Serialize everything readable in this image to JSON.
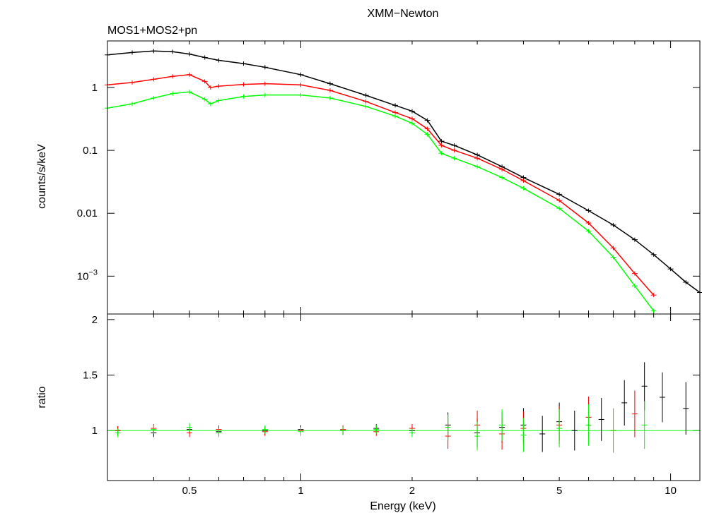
{
  "chart_data": [
    {
      "type": "line",
      "title": "XMM−Newton",
      "subtitle": "MOS1+MOS2+pn",
      "xlabel": "",
      "ylabel": "counts/s/keV",
      "xscale": "log",
      "yscale": "log",
      "xlim": [
        0.3,
        12
      ],
      "ylim": [
        0.00025,
        5.5
      ],
      "y_ticks": [
        {
          "value": 1,
          "label": "1"
        },
        {
          "value": 0.1,
          "label": "0.1"
        },
        {
          "value": 0.01,
          "label": "0.01"
        },
        {
          "value": 0.001,
          "label": "10−3"
        }
      ],
      "grid": false,
      "series": [
        {
          "color": "#000000",
          "points": [
            [
              0.3,
              3.3
            ],
            [
              0.35,
              3.6
            ],
            [
              0.4,
              3.8
            ],
            [
              0.45,
              3.7
            ],
            [
              0.5,
              3.4
            ],
            [
              0.55,
              3.0
            ],
            [
              0.6,
              2.7
            ],
            [
              0.7,
              2.4
            ],
            [
              0.8,
              2.1
            ],
            [
              1.0,
              1.6
            ],
            [
              1.2,
              1.15
            ],
            [
              1.5,
              0.75
            ],
            [
              1.8,
              0.52
            ],
            [
              2.0,
              0.42
            ],
            [
              2.2,
              0.3
            ],
            [
              2.4,
              0.14
            ],
            [
              2.6,
              0.12
            ],
            [
              3.0,
              0.085
            ],
            [
              3.5,
              0.055
            ],
            [
              4.0,
              0.037
            ],
            [
              5.0,
              0.02
            ],
            [
              6.0,
              0.011
            ],
            [
              7.0,
              0.0065
            ],
            [
              8.0,
              0.0038
            ],
            [
              9.0,
              0.0022
            ],
            [
              10.0,
              0.0013
            ],
            [
              11.0,
              0.0008
            ],
            [
              12.0,
              0.00055
            ]
          ]
        },
        {
          "color": "#ff0000",
          "points": [
            [
              0.3,
              1.1
            ],
            [
              0.35,
              1.2
            ],
            [
              0.4,
              1.35
            ],
            [
              0.45,
              1.5
            ],
            [
              0.5,
              1.6
            ],
            [
              0.55,
              1.25
            ],
            [
              0.57,
              1.0
            ],
            [
              0.6,
              1.05
            ],
            [
              0.7,
              1.12
            ],
            [
              0.8,
              1.15
            ],
            [
              1.0,
              1.1
            ],
            [
              1.2,
              0.9
            ],
            [
              1.5,
              0.6
            ],
            [
              1.8,
              0.4
            ],
            [
              2.0,
              0.32
            ],
            [
              2.2,
              0.22
            ],
            [
              2.4,
              0.12
            ],
            [
              2.6,
              0.1
            ],
            [
              3.0,
              0.075
            ],
            [
              3.5,
              0.05
            ],
            [
              4.0,
              0.033
            ],
            [
              5.0,
              0.016
            ],
            [
              6.0,
              0.007
            ],
            [
              7.0,
              0.0028
            ],
            [
              8.0,
              0.0011
            ],
            [
              9.0,
              0.0005
            ]
          ]
        },
        {
          "color": "#00ff00",
          "points": [
            [
              0.3,
              0.47
            ],
            [
              0.35,
              0.55
            ],
            [
              0.4,
              0.68
            ],
            [
              0.45,
              0.8
            ],
            [
              0.5,
              0.85
            ],
            [
              0.55,
              0.65
            ],
            [
              0.57,
              0.55
            ],
            [
              0.6,
              0.62
            ],
            [
              0.7,
              0.72
            ],
            [
              0.8,
              0.76
            ],
            [
              1.0,
              0.76
            ],
            [
              1.2,
              0.68
            ],
            [
              1.5,
              0.5
            ],
            [
              1.8,
              0.35
            ],
            [
              2.0,
              0.27
            ],
            [
              2.2,
              0.18
            ],
            [
              2.4,
              0.09
            ],
            [
              2.6,
              0.075
            ],
            [
              3.0,
              0.055
            ],
            [
              3.5,
              0.037
            ],
            [
              4.0,
              0.025
            ],
            [
              5.0,
              0.012
            ],
            [
              6.0,
              0.0052
            ],
            [
              7.0,
              0.002
            ],
            [
              8.0,
              0.0007
            ],
            [
              9.0,
              0.00028
            ]
          ]
        }
      ]
    },
    {
      "type": "scatter",
      "title": "",
      "xlabel": "Energy (keV)",
      "ylabel": "ratio",
      "xscale": "log",
      "yscale": "linear",
      "xlim": [
        0.3,
        12
      ],
      "ylim": [
        0.55,
        2.05
      ],
      "x_ticks": [
        {
          "value": 0.5,
          "label": "0.5"
        },
        {
          "value": 1,
          "label": "1"
        },
        {
          "value": 2,
          "label": "2"
        },
        {
          "value": 5,
          "label": "5"
        },
        {
          "value": 10,
          "label": "10"
        }
      ],
      "y_ticks": [
        {
          "value": 1,
          "label": "1"
        },
        {
          "value": 1.5,
          "label": "1.5"
        },
        {
          "value": 2,
          "label": "2"
        }
      ],
      "reference_line": 1,
      "grid": false,
      "series": [
        {
          "color": "#000000",
          "points": [
            [
              0.32,
              1.0
            ],
            [
              0.4,
              0.98
            ],
            [
              0.5,
              1.01
            ],
            [
              0.6,
              0.99
            ],
            [
              0.8,
              1.0
            ],
            [
              1.0,
              1.01
            ],
            [
              1.3,
              1.0
            ],
            [
              1.6,
              1.02
            ],
            [
              2.0,
              1.0
            ],
            [
              2.5,
              1.05
            ],
            [
              3.0,
              0.98
            ],
            [
              3.5,
              1.03
            ],
            [
              4.0,
              1.05
            ],
            [
              4.5,
              0.97
            ],
            [
              5.0,
              1.08
            ],
            [
              5.5,
              1.0
            ],
            [
              6.5,
              1.1
            ],
            [
              7.5,
              1.25
            ],
            [
              8.5,
              1.4
            ],
            [
              9.5,
              1.3
            ],
            [
              11.0,
              1.2
            ]
          ]
        },
        {
          "color": "#ff0000",
          "points": [
            [
              0.32,
              1.0
            ],
            [
              0.4,
              1.02
            ],
            [
              0.5,
              0.98
            ],
            [
              0.6,
              1.01
            ],
            [
              0.8,
              0.99
            ],
            [
              1.0,
              1.0
            ],
            [
              1.3,
              1.01
            ],
            [
              1.6,
              0.99
            ],
            [
              2.0,
              1.02
            ],
            [
              2.5,
              0.95
            ],
            [
              3.0,
              1.05
            ],
            [
              3.5,
              0.97
            ],
            [
              4.0,
              1.02
            ],
            [
              5.0,
              1.05
            ],
            [
              6.0,
              1.12
            ],
            [
              7.0,
              1.0
            ],
            [
              8.0,
              1.15
            ]
          ]
        },
        {
          "color": "#00ff00",
          "points": [
            [
              0.32,
              0.98
            ],
            [
              0.4,
              1.01
            ],
            [
              0.5,
              1.03
            ],
            [
              0.6,
              0.98
            ],
            [
              0.8,
              1.01
            ],
            [
              1.0,
              0.99
            ],
            [
              1.3,
              1.0
            ],
            [
              1.6,
              1.01
            ],
            [
              2.0,
              0.98
            ],
            [
              2.5,
              1.03
            ],
            [
              3.0,
              0.95
            ],
            [
              3.5,
              1.05
            ],
            [
              4.0,
              0.96
            ],
            [
              5.0,
              1.02
            ],
            [
              6.0,
              1.05
            ],
            [
              7.0,
              1.0
            ],
            [
              8.5,
              1.05
            ]
          ]
        }
      ]
    }
  ]
}
